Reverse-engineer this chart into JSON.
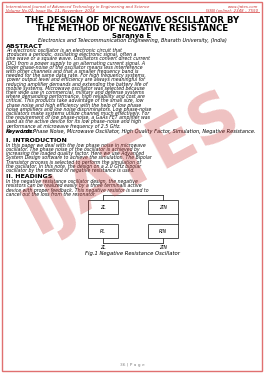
{
  "page_bg": "#ffffff",
  "border_color": "#e07070",
  "header_journal": "International Journal of Advanced Technology in Engineering and Science",
  "header_website": "www.ijates.com",
  "header_volume": "Volume No.02, Issue No. 11, November  2014",
  "header_issn": "ISSN (online): 2348 – 7550",
  "title_line1": "THE DESIGN OF MICROWAVE OSCILLATOR BY",
  "title_line2": "THE METHOD OF NEGATIVE RESISTANCE",
  "author": "Saranya E",
  "affiliation": "Electronics and Telecommunication Engineering, Bharath University, (India)",
  "abstract_title": "ABSTRACT",
  "abstract_text": "An electronic oscillator is an electronic circuit that produces a periodic, oscillating electronic signal, often a sine wave or a square wave. Oscillators convert direct current (DC) from a power supply to an alternating current signal. A lower phase-noise of the oscillator means less interference with other channels and that a smaller frequency band is needed for the same data rate. For high frequency systems, power output level and efficiency are always meaningful for reducing amplifier demands and extending the battery life of mobile systems. Microwave oscillator was selected because their wide use in commercial, military and defense systems where demanding performance, high reliability and cost are critical. This products take advantage of the small size, low phase noise and high efficiency with the help of low phase noise amplifiers and low noise discriminators. Low phase-noise oscillators make systems utilize channel much effectively. For the requirement of low phase-noise, a GaAs FET amplifier was used as the active device for its low phase–noise and high performance at microwave frequency of 2.5 GHz.",
  "keywords_label": "Keywords:",
  "keywords_text": " Low Phase Noise, Microwave Oscillator, High Quality Factor, Simulation, Negative Resistance.",
  "section1_title": "I. INTRODUCTION",
  "section1_text": "In this paper we deal with the low phase noise in microwave oscillator. The phase noise of the oscillator is achieved by increasing the loaded quality factor. Here we use Advanced System Design software to achieve the simulation. The Bipolar Transistor process is selected to perform the simulation of the oscillator. In this note, the design on a 2.0 GHz bipolar oscillator by the method of negative resistance is used.",
  "section2_title": "II. HEADINGS",
  "section2_text": "In the negative resistance oscillator design, the negative resistors can be realized easily by a three terminals active device with proper feedback. This negative resistor is used to cancel out the loss from the resonator.",
  "fig_caption": "Fig.1 Negative Resistance Oscillator",
  "watermark_text": "IJATES",
  "watermark_color": "#cc3333",
  "watermark_alpha": 0.3,
  "page_number": "36 | P a g e",
  "header_line_color": "#e07070",
  "box_labels_top": [
    "ZL",
    "ZIN"
  ],
  "box_labels_mid": [
    "RL",
    "RIN"
  ],
  "box_bottom_labels": [
    "ZL",
    "ZIN"
  ],
  "header_color": "#cc3333"
}
